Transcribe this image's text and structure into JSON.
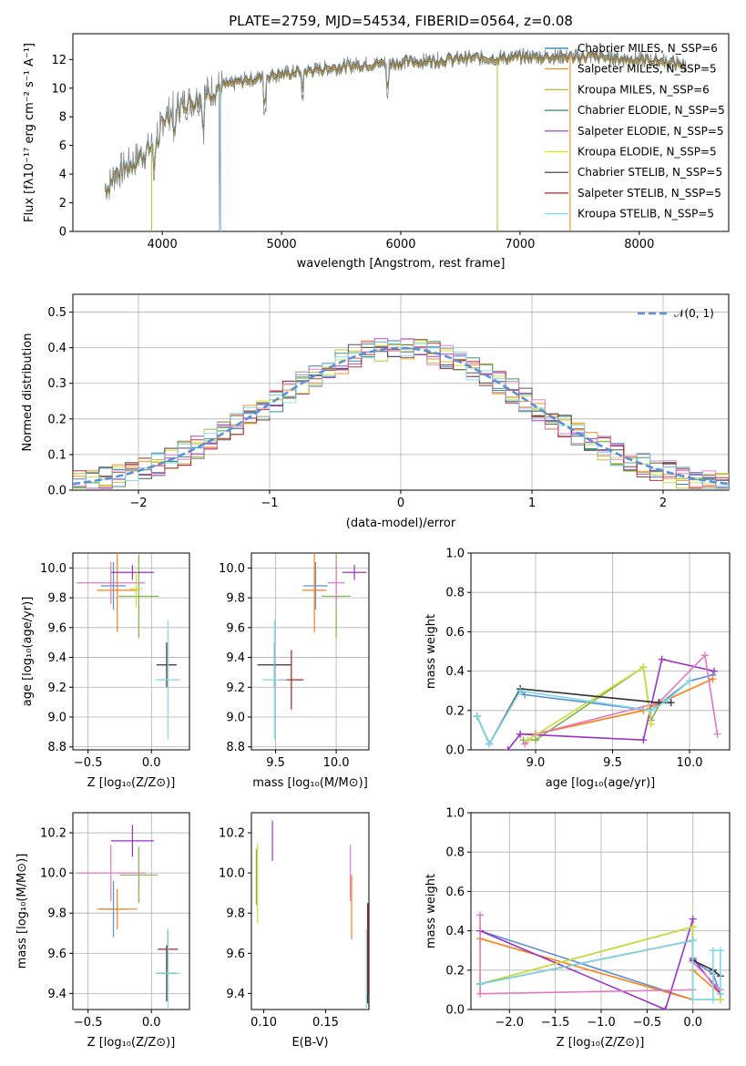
{
  "chart_data": [
    {
      "type": "line",
      "title": "PLATE=2759, MJD=54534, FIBERID=0564, z=0.08",
      "xlabel": "wavelength [Angstrom, rest frame]",
      "ylabel": "Flux [fλ10⁻¹⁷ erg cm⁻² s⁻¹ A⁻¹]",
      "xlim": [
        3250,
        8750
      ],
      "ylim": [
        0,
        13.8
      ],
      "xticks": [
        4000,
        5000,
        6000,
        7000,
        8000
      ],
      "yticks": [
        0,
        2,
        4,
        6,
        8,
        10,
        12
      ],
      "grid": false,
      "legend_position": "top-right",
      "data_series": {
        "name": "",
        "color": "#808080"
      },
      "series": [
        {
          "name": "Chabrier MILES, N_SSP=6",
          "color": "#1f77b4"
        },
        {
          "name": "Salpeter MILES, N_SSP=5",
          "color": "#ff7f0e"
        },
        {
          "name": "Kroupa MILES, N_SSP=6",
          "color": "#bcbd22"
        },
        {
          "name": "Chabrier ELODIE, N_SSP=5",
          "color": "#2e8b57"
        },
        {
          "name": "Salpeter ELODIE, N_SSP=5",
          "color": "#9932cc"
        },
        {
          "name": "Kroupa ELODIE, N_SSP=5",
          "color": "#e6e600"
        },
        {
          "name": "Chabrier STELIB, N_SSP=5",
          "color": "#333333"
        },
        {
          "name": "Salpeter STELIB, N_SSP=5",
          "color": "#b22222"
        },
        {
          "name": "Kroupa STELIB, N_SSP=5",
          "color": "#7fd8e8"
        }
      ],
      "continuum": {
        "x": [
          3550,
          3600,
          3700,
          3800,
          3900,
          4000,
          4100,
          4200,
          4300,
          4400,
          4500,
          4600,
          4700,
          4800,
          4900,
          5000,
          5100,
          5200,
          5300,
          5400,
          5500,
          5600,
          5700,
          5800,
          5900,
          6000,
          6200,
          6400,
          6600,
          6800,
          7000,
          7200,
          7400,
          7600,
          7800,
          8000,
          8200,
          8400
        ],
        "y": [
          3.2,
          4.0,
          4.5,
          5.2,
          5.8,
          7.8,
          8.6,
          9.0,
          9.3,
          9.8,
          10.2,
          10.3,
          10.6,
          10.7,
          10.9,
          11.0,
          11.1,
          11.2,
          11.3,
          11.4,
          11.5,
          11.6,
          11.7,
          11.7,
          11.8,
          11.8,
          11.9,
          12.0,
          12.1,
          12.1,
          12.2,
          12.2,
          12.2,
          12.2,
          12.1,
          12.0,
          11.9,
          11.6
        ]
      }
    },
    {
      "type": "bar",
      "xlabel": "(data-model)/error",
      "ylabel": "Normed distribution",
      "xlim": [
        -2.5,
        2.5
      ],
      "ylim": [
        0,
        0.55
      ],
      "xticks": [
        -2,
        -1,
        0,
        1,
        2
      ],
      "xtick_labels": [
        "−2",
        "−1",
        "0",
        "1",
        "2"
      ],
      "yticks": [
        0.0,
        0.1,
        0.2,
        0.3,
        0.4,
        0.5
      ],
      "ytick_labels": [
        "0.0",
        "0.1",
        "0.2",
        "0.3",
        "0.4",
        "0.5"
      ],
      "grid": true,
      "legend_position": "top-right",
      "curve": {
        "name": "𝒩(0, 1)",
        "color": "#5b8fd6"
      },
      "bin_width": 0.1,
      "bin_start": -2.5,
      "model_colors": [
        "#1f77b4",
        "#ff7f0e",
        "#bcbd22",
        "#2e8b57",
        "#9932cc",
        "#cddc39",
        "#444444",
        "#b22222",
        "#e377c2",
        "#7fd8e8"
      ]
    },
    {
      "type": "scatter",
      "xlabel": "Z [log₁₀(Z/Z⊙)]",
      "ylabel": "age  [log₁₀(age/yr)]",
      "xlim": [
        -0.62,
        0.3
      ],
      "ylim": [
        8.78,
        10.1
      ],
      "xticks": [
        -0.5,
        0.0
      ],
      "xtick_labels": [
        "−0.5",
        "0.0"
      ],
      "yticks": [
        8.8,
        9.0,
        9.2,
        9.4,
        9.6,
        9.8,
        10.0
      ],
      "ytick_labels": [
        "8.8",
        "9.0",
        "9.2",
        "9.4",
        "9.6",
        "9.8",
        "10.0"
      ],
      "grid": true,
      "points": [
        {
          "x": -0.3,
          "y": 9.88,
          "xerr": 0.1,
          "yerr": 0.16,
          "color": "#5b8fd6"
        },
        {
          "x": -0.27,
          "y": 9.85,
          "xerr": 0.16,
          "yerr": 0.28,
          "color": "#ff7f0e"
        },
        {
          "x": -0.1,
          "y": 9.81,
          "xerr": 0.16,
          "yerr": 0.28,
          "color": "#7cb342"
        },
        {
          "x": -0.15,
          "y": 9.97,
          "xerr": 0.17,
          "yerr": 0.05,
          "color": "#9932cc"
        },
        {
          "x": -0.32,
          "y": 9.9,
          "xerr": 0.27,
          "yerr": 0.14,
          "color": "#e377c2"
        },
        {
          "x": -0.12,
          "y": 9.86,
          "xerr": 0.05,
          "yerr": 0.12,
          "color": "#cddc39"
        },
        {
          "x": 0.12,
          "y": 9.35,
          "xerr": 0.08,
          "yerr": 0.15,
          "color": "#333333"
        },
        {
          "x": 0.13,
          "y": 9.25,
          "xerr": 0.1,
          "yerr": 0.4,
          "color": "#7fd8e8"
        }
      ]
    },
    {
      "type": "scatter",
      "xlabel": "mass [log₁₀(M/M⊙)]",
      "ylabel": "",
      "xlim": [
        9.3,
        10.27
      ],
      "ylim": [
        8.78,
        10.1
      ],
      "xticks": [
        9.5,
        10.0
      ],
      "xtick_labels": [
        "9.5",
        "10.0"
      ],
      "yticks": [
        8.8,
        9.0,
        9.2,
        9.4,
        9.6,
        9.8,
        10.0
      ],
      "ytick_labels": [
        "8.8",
        "9.0",
        "9.2",
        "9.4",
        "9.6",
        "9.8",
        "10.0"
      ],
      "grid": true,
      "points": [
        {
          "x": 9.83,
          "y": 9.88,
          "xerr": 0.1,
          "yerr": 0.16,
          "color": "#5b8fd6"
        },
        {
          "x": 9.82,
          "y": 9.85,
          "xerr": 0.1,
          "yerr": 0.28,
          "color": "#ff7f0e"
        },
        {
          "x": 10.0,
          "y": 9.81,
          "xerr": 0.12,
          "yerr": 0.28,
          "color": "#7cb342"
        },
        {
          "x": 10.15,
          "y": 9.97,
          "xerr": 0.1,
          "yerr": 0.05,
          "color": "#9932cc"
        },
        {
          "x": 10.0,
          "y": 9.9,
          "xerr": 0.07,
          "yerr": 0.14,
          "color": "#e377c2"
        },
        {
          "x": 9.49,
          "y": 9.35,
          "xerr": 0.14,
          "yerr": 0.15,
          "color": "#333333"
        },
        {
          "x": 9.63,
          "y": 9.25,
          "xerr": 0.1,
          "yerr": 0.2,
          "color": "#b22222"
        },
        {
          "x": 9.49,
          "y": 9.25,
          "xerr": 0.1,
          "yerr": 0.4,
          "color": "#7fd8e8"
        }
      ]
    },
    {
      "type": "line",
      "xlabel": "age  [log₁₀(age/yr)]",
      "ylabel": "mass weight",
      "xlim": [
        8.58,
        10.26
      ],
      "ylim": [
        0,
        1.0
      ],
      "xticks": [
        9.0,
        9.5,
        10.0
      ],
      "xtick_labels": [
        "9.0",
        "9.5",
        "10.0"
      ],
      "yticks": [
        0.0,
        0.2,
        0.4,
        0.6,
        0.8,
        1.0
      ],
      "ytick_labels": [
        "0.0",
        "0.2",
        "0.4",
        "0.6",
        "0.8",
        "1.0"
      ],
      "grid": true,
      "series": [
        {
          "color": "#5b8fd6",
          "x": [
            8.62,
            8.7,
            8.9,
            8.93,
            9.75,
            10.0,
            10.15
          ],
          "y": [
            0.17,
            0.03,
            0.3,
            0.28,
            0.2,
            0.35,
            0.38
          ]
        },
        {
          "color": "#ff7f0e",
          "x": [
            8.9,
            9.0,
            9.7,
            10.15
          ],
          "y": [
            0.08,
            0.08,
            0.2,
            0.36
          ]
        },
        {
          "color": "#7cb342",
          "x": [
            8.92,
            9.0,
            9.7,
            9.75,
            9.81
          ],
          "y": [
            0.05,
            0.05,
            0.42,
            0.15,
            0.24
          ]
        },
        {
          "color": "#9932cc",
          "x": [
            8.82,
            8.9,
            9.7,
            9.82,
            10.16
          ],
          "y": [
            0.0,
            0.08,
            0.05,
            0.46,
            0.4
          ]
        },
        {
          "color": "#e377c2",
          "x": [
            8.93,
            9.0,
            9.8,
            10.1,
            10.18
          ],
          "y": [
            0.03,
            0.08,
            0.24,
            0.48,
            0.08
          ]
        },
        {
          "color": "#cddc39",
          "x": [
            8.95,
            9.7,
            9.75
          ],
          "y": [
            0.05,
            0.42,
            0.13
          ]
        },
        {
          "color": "#333333",
          "x": [
            8.62,
            8.7,
            8.9,
            9.8,
            9.88
          ],
          "y": [
            0.17,
            0.03,
            0.31,
            0.24,
            0.24
          ]
        },
        {
          "color": "#7fd8e8",
          "x": [
            8.62,
            8.7,
            8.9,
            9.75,
            9.85,
            10.0
          ],
          "y": [
            0.17,
            0.03,
            0.3,
            0.2,
            0.25,
            0.35
          ]
        }
      ]
    },
    {
      "type": "scatter",
      "xlabel": "Z [log₁₀(Z/Z⊙)]",
      "ylabel": "mass [log₁₀(M/M⊙)]",
      "xlim": [
        -0.62,
        0.3
      ],
      "ylim": [
        9.32,
        10.3
      ],
      "xticks": [
        -0.5,
        0.0
      ],
      "xtick_labels": [
        "−0.5",
        "0.0"
      ],
      "yticks": [
        9.4,
        9.6,
        9.8,
        10.0,
        10.2
      ],
      "ytick_labels": [
        "9.4",
        "9.6",
        "9.8",
        "10.0",
        "10.2"
      ],
      "grid": true,
      "points": [
        {
          "x": -0.3,
          "y": 9.82,
          "xerr": 0.1,
          "yerr": 0.14,
          "color": "#5b8fd6"
        },
        {
          "x": -0.27,
          "y": 9.82,
          "xerr": 0.16,
          "yerr": 0.1,
          "color": "#ff7f0e"
        },
        {
          "x": -0.1,
          "y": 9.99,
          "xerr": 0.15,
          "yerr": 0.14,
          "color": "#7cb342"
        },
        {
          "x": -0.15,
          "y": 10.16,
          "xerr": 0.17,
          "yerr": 0.08,
          "color": "#9932cc"
        },
        {
          "x": -0.32,
          "y": 10.0,
          "xerr": 0.27,
          "yerr": 0.14,
          "color": "#e377c2"
        },
        {
          "x": 0.12,
          "y": 9.5,
          "xerr": 0.08,
          "yerr": 0.14,
          "color": "#333333"
        },
        {
          "x": 0.13,
          "y": 9.62,
          "xerr": 0.08,
          "yerr": 0.1,
          "color": "#b22222"
        },
        {
          "x": 0.13,
          "y": 9.5,
          "xerr": 0.1,
          "yerr": 0.22,
          "color": "#7fd8e8"
        }
      ]
    },
    {
      "type": "scatter",
      "xlabel": "E(B-V)",
      "ylabel": "",
      "xlim": [
        0.09,
        0.185
      ],
      "ylim": [
        9.32,
        10.3
      ],
      "xticks": [
        0.1,
        0.15
      ],
      "xtick_labels": [
        "0.10",
        "0.15"
      ],
      "yticks": [
        9.4,
        9.6,
        9.8,
        10.0,
        10.2
      ],
      "ytick_labels": [
        "9.4",
        "9.6",
        "9.8",
        "10.0",
        "10.2"
      ],
      "grid": false,
      "points": [
        {
          "x": 0.094,
          "y": 9.98,
          "xerr": 0,
          "yerr": 0.14,
          "color": "#7cb342"
        },
        {
          "x": 0.095,
          "y": 9.95,
          "xerr": 0,
          "yerr": 0.2,
          "color": "#cddc39"
        },
        {
          "x": 0.107,
          "y": 10.16,
          "xerr": 0,
          "yerr": 0.1,
          "color": "#9932cc"
        },
        {
          "x": 0.17,
          "y": 10.0,
          "xerr": 0,
          "yerr": 0.14,
          "color": "#e377c2"
        },
        {
          "x": 0.171,
          "y": 9.83,
          "xerr": 0,
          "yerr": 0.16,
          "color": "#ff7f0e"
        },
        {
          "x": 0.184,
          "y": 9.6,
          "xerr": 0,
          "yerr": 0.25,
          "color": "#333333"
        },
        {
          "x": 0.184,
          "y": 9.62,
          "xerr": 0,
          "yerr": 0.22,
          "color": "#b22222"
        },
        {
          "x": 0.183,
          "y": 9.5,
          "xerr": 0,
          "yerr": 0.22,
          "color": "#7fd8e8"
        }
      ]
    },
    {
      "type": "line",
      "xlabel": "Z [log₁₀(Z/Z⊙)]",
      "ylabel": "mass weight",
      "xlim": [
        -2.42,
        0.4
      ],
      "ylim": [
        0,
        1.0
      ],
      "xticks": [
        -2.0,
        -1.5,
        -1.0,
        -0.5,
        0.0
      ],
      "xtick_labels": [
        "−2.0",
        "−1.5",
        "−1.0",
        "−0.5",
        "0.0"
      ],
      "yticks": [
        0.0,
        0.2,
        0.4,
        0.6,
        0.8,
        1.0
      ],
      "ytick_labels": [
        "0.0",
        "0.2",
        "0.4",
        "0.6",
        "0.8",
        "1.0"
      ],
      "grid": true,
      "series": [
        {
          "color": "#5b8fd6",
          "x": [
            -2.32,
            0.0,
            0.0,
            0.22,
            0.3
          ],
          "y": [
            0.4,
            0.05,
            0.25,
            0.18,
            0.08
          ]
        },
        {
          "color": "#ff7f0e",
          "x": [
            -2.32,
            0.0,
            0.0,
            0.3
          ],
          "y": [
            0.36,
            0.05,
            0.2,
            0.08
          ]
        },
        {
          "color": "#7cb342",
          "x": [
            -2.32,
            0.0,
            0.0,
            0.3
          ],
          "y": [
            0.13,
            0.42,
            0.05,
            0.05
          ]
        },
        {
          "color": "#9932cc",
          "x": [
            -2.32,
            -0.3,
            0.0,
            0.0,
            0.3
          ],
          "y": [
            0.4,
            0.0,
            0.46,
            0.26,
            0.08
          ]
        },
        {
          "color": "#e377c2",
          "x": [
            -2.32,
            -2.32,
            0.0,
            0.0,
            0.3
          ],
          "y": [
            0.48,
            0.08,
            0.1,
            0.24,
            0.1
          ]
        },
        {
          "color": "#cddc39",
          "x": [
            -2.32,
            0.0,
            0.0,
            0.3
          ],
          "y": [
            0.13,
            0.42,
            0.05,
            0.05
          ]
        },
        {
          "color": "#333333",
          "x": [
            -2.32,
            0.0,
            0.0,
            0.22,
            0.3
          ],
          "y": [
            0.13,
            0.35,
            0.25,
            0.2,
            0.17
          ]
        },
        {
          "color": "#7fd8e8",
          "x": [
            -2.32,
            0.0,
            0.0,
            0.22,
            0.22,
            0.3,
            0.3
          ],
          "y": [
            0.13,
            0.35,
            0.05,
            0.05,
            0.3,
            0.3,
            0.08
          ]
        }
      ]
    }
  ]
}
